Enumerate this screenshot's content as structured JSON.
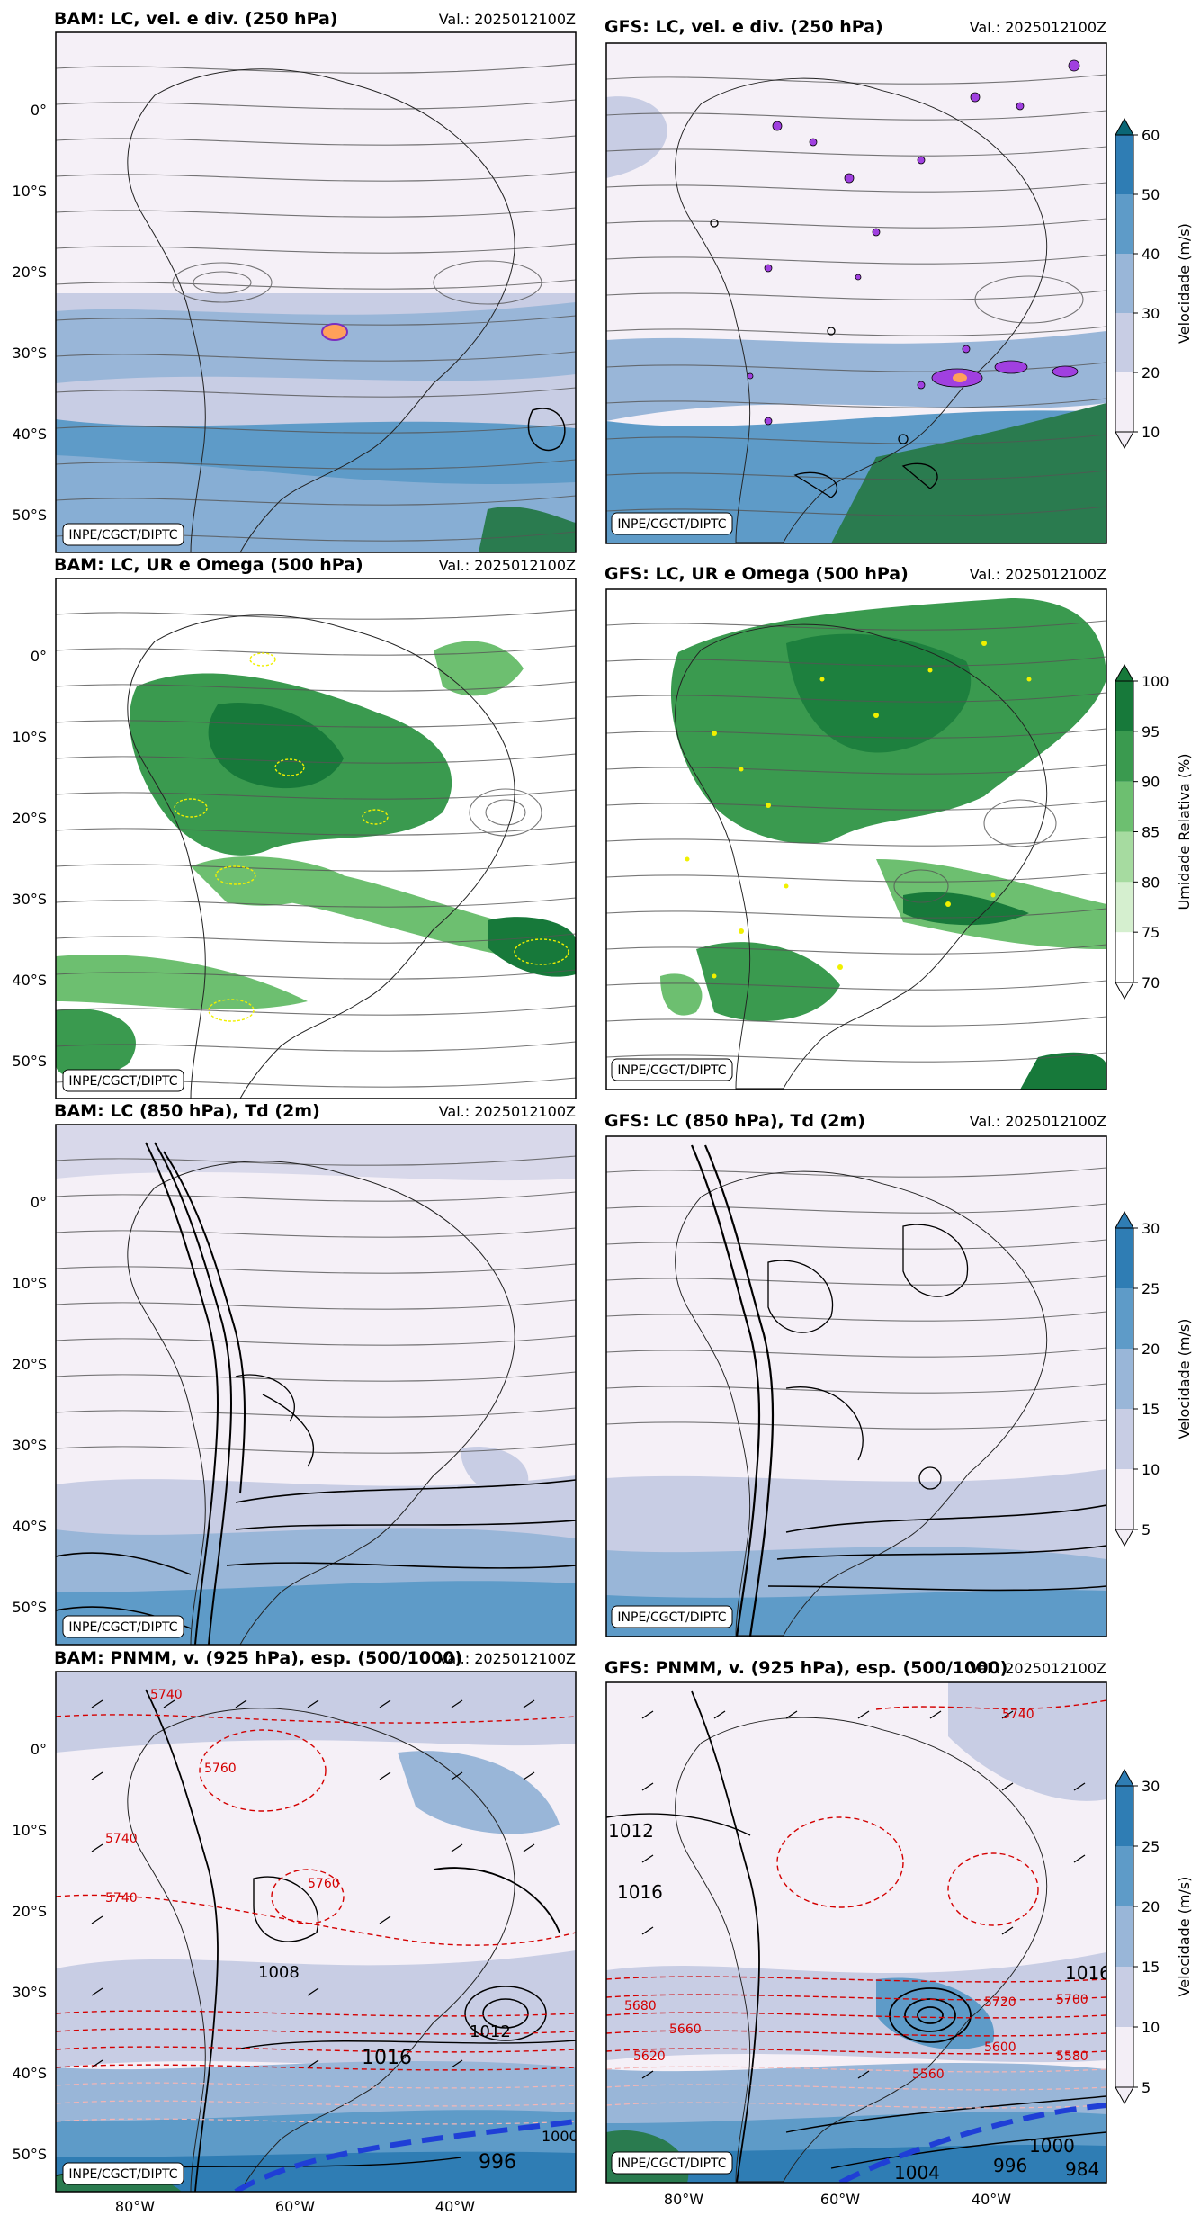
{
  "credit": "INPE/CGCT/DIPTC",
  "valid": "Val.: 2025012100Z",
  "lat_ticks": [
    "0°",
    "10°S",
    "20°S",
    "30°S",
    "40°S",
    "50°S"
  ],
  "lon_ticks": [
    "80°W",
    "60°W",
    "40°W"
  ],
  "rows": [
    {
      "bam_title": "BAM: LC, vel. e div. (250 hPa)",
      "gfs_title": "GFS: LC, vel. e div. (250 hPa)",
      "colorbar": {
        "label": "Velocidade (m/s)",
        "ticks": [
          "10",
          "20",
          "30",
          "40",
          "50",
          "60"
        ],
        "colors": [
          "#f3eef6",
          "#c8cde4",
          "#99b6d8",
          "#5e9bc8",
          "#2f7db4",
          "#0a6676"
        ]
      }
    },
    {
      "bam_title": "BAM: LC, UR e Omega (500 hPa)",
      "gfs_title": "GFS: LC, UR e Omega (500 hPa)",
      "colorbar": {
        "label": "Umidade Relativa (%)",
        "ticks": [
          "70",
          "75",
          "80",
          "85",
          "90",
          "95",
          "100"
        ],
        "colors": [
          "#ffffff",
          "#d5efcf",
          "#a6dba0",
          "#6dbf70",
          "#3a9a4f",
          "#17793a"
        ]
      }
    },
    {
      "bam_title": "BAM: LC (850 hPa), Td (2m)",
      "gfs_title": "GFS: LC (850 hPa), Td (2m)",
      "colorbar": {
        "label": "Velocidade (m/s)",
        "ticks": [
          "5",
          "10",
          "15",
          "20",
          "25",
          "30"
        ],
        "colors": [
          "#f3eef6",
          "#c8cde4",
          "#99b6d8",
          "#5e9bc8",
          "#2f7db4"
        ]
      }
    },
    {
      "bam_title": "BAM: PNMM, v. (925 hPa), esp. (500/1000)",
      "gfs_title": "GFS: PNMM, v. (925 hPa), esp. (500/1000)",
      "colorbar": {
        "label": "Velocidade (m/s)",
        "ticks": [
          "5",
          "10",
          "15",
          "20",
          "25",
          "30"
        ],
        "colors": [
          "#f3eef6",
          "#c8cde4",
          "#99b6d8",
          "#5e9bc8",
          "#2f7db4"
        ]
      }
    }
  ],
  "map_labels": {
    "bam_isobars": [
      "1016",
      "1012",
      "1008",
      "996",
      "1000"
    ],
    "gfs_isobars": [
      "1012",
      "1016",
      "1016",
      "1000",
      "996",
      "984",
      "1004"
    ],
    "bam_thickness": [
      "5740",
      "5760",
      "5740",
      "5760",
      "5740"
    ],
    "gfs_thickness": [
      "5740",
      "5680",
      "5660",
      "5620",
      "5700",
      "5720",
      "5600",
      "5580",
      "5560"
    ]
  },
  "colors": {
    "accent_blue": "#1f3fd6",
    "contour_red": "#d40000"
  }
}
